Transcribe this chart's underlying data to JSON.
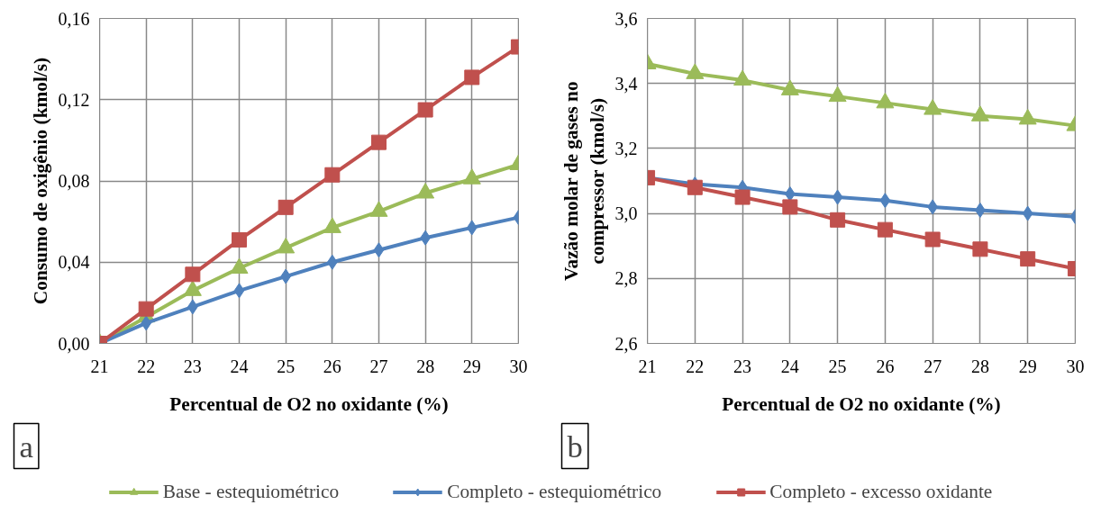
{
  "chart_data": [
    {
      "type": "line",
      "categories": [
        "21",
        "22",
        "23",
        "24",
        "25",
        "26",
        "27",
        "28",
        "29",
        "30"
      ],
      "xlabel": "Percentual de O2 no oxidante (%)",
      "ylabel": "Consumo de oxigênio (kmol/s)",
      "ylim": [
        0,
        0.16
      ],
      "yticks": [
        {
          "value": 0,
          "label": "0,00"
        },
        {
          "value": 0.04,
          "label": "0,04"
        },
        {
          "value": 0.08,
          "label": "0,08"
        },
        {
          "value": 0.12,
          "label": "0,12"
        },
        {
          "value": 0.16,
          "label": "0,16"
        }
      ],
      "grid": true,
      "legend": "bottom",
      "annotations": [
        "a"
      ],
      "series": [
        {
          "name": "Base - estequiométrico",
          "color": "#9bbb59",
          "marker": "triangle",
          "values": [
            0,
            0.013,
            0.026,
            0.037,
            0.047,
            0.057,
            0.065,
            0.074,
            0.081,
            0.088
          ]
        },
        {
          "name": "Completo - estequiométrico",
          "color": "#4f81bd",
          "marker": "diamond",
          "values": [
            0,
            0.01,
            0.018,
            0.026,
            0.033,
            0.04,
            0.046,
            0.052,
            0.057,
            0.062
          ]
        },
        {
          "name": "Completo - excesso oxidante",
          "color": "#c0504d",
          "marker": "square",
          "values": [
            0,
            0.017,
            0.034,
            0.051,
            0.067,
            0.083,
            0.099,
            0.115,
            0.131,
            0.146
          ]
        }
      ]
    },
    {
      "type": "line",
      "categories": [
        "21",
        "22",
        "23",
        "24",
        "25",
        "26",
        "27",
        "28",
        "29",
        "30"
      ],
      "xlabel": "Percentual de O2 no oxidante (%)",
      "ylabel": "Vazão molar de gases no compressor (kmol/s)",
      "ylim": [
        2.6,
        3.6
      ],
      "yticks": [
        {
          "value": 2.6,
          "label": "2,6"
        },
        {
          "value": 2.8,
          "label": "2,8"
        },
        {
          "value": 3.0,
          "label": "3,0"
        },
        {
          "value": 3.2,
          "label": "3,2"
        },
        {
          "value": 3.4,
          "label": "3,4"
        },
        {
          "value": 3.6,
          "label": "3,6"
        }
      ],
      "grid": true,
      "annotations": [
        "b"
      ],
      "series": [
        {
          "color": "#9bbb59",
          "marker": "triangle",
          "values": [
            3.46,
            3.43,
            3.41,
            3.38,
            3.36,
            3.34,
            3.32,
            3.3,
            3.29,
            3.27
          ]
        },
        {
          "color": "#4f81bd",
          "marker": "diamond",
          "values": [
            3.11,
            3.09,
            3.08,
            3.06,
            3.05,
            3.04,
            3.02,
            3.01,
            3.0,
            2.99
          ]
        },
        {
          "color": "#c0504d",
          "marker": "square",
          "values": [
            3.11,
            3.08,
            3.05,
            3.02,
            2.98,
            2.95,
            2.92,
            2.89,
            2.86,
            2.83
          ]
        }
      ]
    }
  ]
}
